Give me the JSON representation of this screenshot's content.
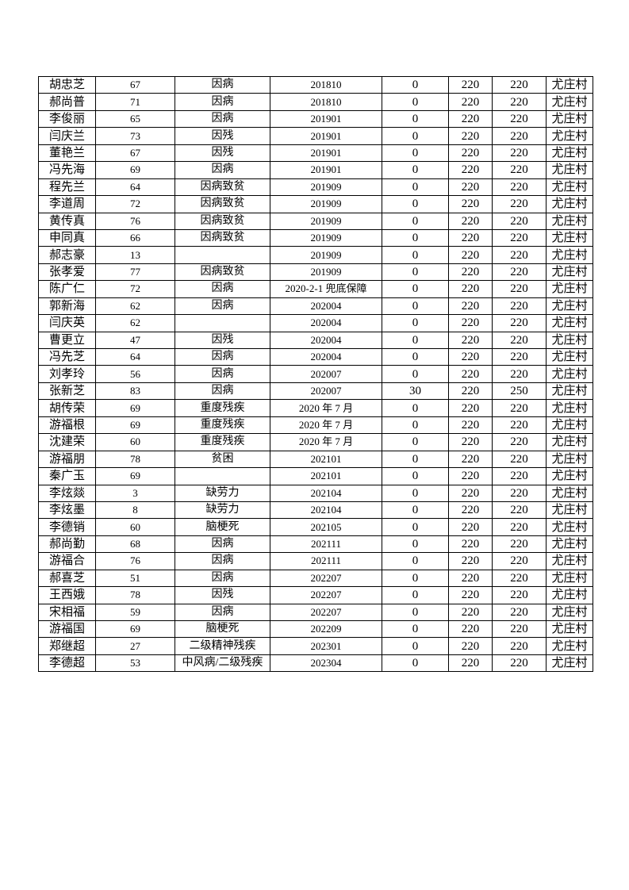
{
  "table": {
    "rows": [
      [
        "胡忠芝",
        "67",
        "因病",
        "201810",
        "0",
        "220",
        "220",
        "尤庄村"
      ],
      [
        "郝尚普",
        "71",
        "因病",
        "201810",
        "0",
        "220",
        "220",
        "尤庄村"
      ],
      [
        "李俊丽",
        "65",
        "因病",
        "201901",
        "0",
        "220",
        "220",
        "尤庄村"
      ],
      [
        "闫庆兰",
        "73",
        "因残",
        "201901",
        "0",
        "220",
        "220",
        "尤庄村"
      ],
      [
        "董艳兰",
        "67",
        "因残",
        "201901",
        "0",
        "220",
        "220",
        "尤庄村"
      ],
      [
        "冯先海",
        "69",
        "因病",
        "201901",
        "0",
        "220",
        "220",
        "尤庄村"
      ],
      [
        "程先兰",
        "64",
        "因病致贫",
        "201909",
        "0",
        "220",
        "220",
        "尤庄村"
      ],
      [
        "李道周",
        "72",
        "因病致贫",
        "201909",
        "0",
        "220",
        "220",
        "尤庄村"
      ],
      [
        "黄传真",
        "76",
        "因病致贫",
        "201909",
        "0",
        "220",
        "220",
        "尤庄村"
      ],
      [
        "申同真",
        "66",
        "因病致贫",
        "201909",
        "0",
        "220",
        "220",
        "尤庄村"
      ],
      [
        "郝志豪",
        "13",
        "",
        "201909",
        "0",
        "220",
        "220",
        "尤庄村"
      ],
      [
        "张孝爱",
        "77",
        "因病致贫",
        "201909",
        "0",
        "220",
        "220",
        "尤庄村"
      ],
      [
        "陈广仁",
        "72",
        "因病",
        "2020-2-1 兜底保障",
        "0",
        "220",
        "220",
        "尤庄村"
      ],
      [
        "郭新海",
        "62",
        "因病",
        "202004",
        "0",
        "220",
        "220",
        "尤庄村"
      ],
      [
        "闫庆英",
        "62",
        "",
        "202004",
        "0",
        "220",
        "220",
        "尤庄村"
      ],
      [
        "曹更立",
        "47",
        "因残",
        "202004",
        "0",
        "220",
        "220",
        "尤庄村"
      ],
      [
        "冯先芝",
        "64",
        "因病",
        "202004",
        "0",
        "220",
        "220",
        "尤庄村"
      ],
      [
        "刘孝玲",
        "56",
        "因病",
        "202007",
        "0",
        "220",
        "220",
        "尤庄村"
      ],
      [
        "张新芝",
        "83",
        "因病",
        "202007",
        "30",
        "220",
        "250",
        "尤庄村"
      ],
      [
        "胡传荣",
        "69",
        "重度残疾",
        "2020 年 7 月",
        "0",
        "220",
        "220",
        "尤庄村"
      ],
      [
        "游福根",
        "69",
        "重度残疾",
        "2020 年 7 月",
        "0",
        "220",
        "220",
        "尤庄村"
      ],
      [
        "沈建荣",
        "60",
        "重度残疾",
        "2020 年 7 月",
        "0",
        "220",
        "220",
        "尤庄村"
      ],
      [
        "游福朋",
        "78",
        "贫困",
        "202101",
        "0",
        "220",
        "220",
        "尤庄村"
      ],
      [
        "秦广玉",
        "69",
        "",
        "202101",
        "0",
        "220",
        "220",
        "尤庄村"
      ],
      [
        "李炫燚",
        "3",
        "缺劳力",
        "202104",
        "0",
        "220",
        "220",
        "尤庄村"
      ],
      [
        "李炫墨",
        "8",
        "缺劳力",
        "202104",
        "0",
        "220",
        "220",
        "尤庄村"
      ],
      [
        "李德销",
        "60",
        "脑梗死",
        "202105",
        "0",
        "220",
        "220",
        "尤庄村"
      ],
      [
        "郝尚勤",
        "68",
        "因病",
        "202111",
        "0",
        "220",
        "220",
        "尤庄村"
      ],
      [
        "游福合",
        "76",
        "因病",
        "202111",
        "0",
        "220",
        "220",
        "尤庄村"
      ],
      [
        "郝喜芝",
        "51",
        "因病",
        "202207",
        "0",
        "220",
        "220",
        "尤庄村"
      ],
      [
        "王西娥",
        "78",
        "因残",
        "202207",
        "0",
        "220",
        "220",
        "尤庄村"
      ],
      [
        "宋相福",
        "59",
        "因病",
        "202207",
        "0",
        "220",
        "220",
        "尤庄村"
      ],
      [
        "游福国",
        "69",
        "脑梗死",
        "202209",
        "0",
        "220",
        "220",
        "尤庄村"
      ],
      [
        "郑继超",
        "27",
        "二级精神残疾",
        "202301",
        "0",
        "220",
        "220",
        "尤庄村"
      ],
      [
        "李德超",
        "53",
        "中风病/二级残疾",
        "202304",
        "0",
        "220",
        "220",
        "尤庄村"
      ]
    ]
  }
}
